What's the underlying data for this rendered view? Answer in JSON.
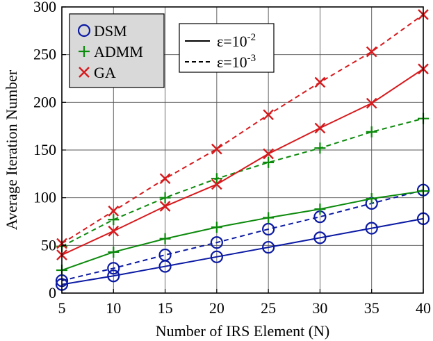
{
  "chart_data": {
    "type": "line",
    "title": "",
    "xlabel": "Number of IRS Element (N)",
    "ylabel": "Average Iteration Number",
    "x": [
      5,
      10,
      15,
      20,
      25,
      30,
      35,
      40
    ],
    "x_ticks": [
      "5",
      "10",
      "15",
      "20",
      "25",
      "30",
      "35",
      "40"
    ],
    "y_ticks": [
      "0",
      "50",
      "100",
      "150",
      "200",
      "250",
      "300"
    ],
    "xlim": [
      5,
      40
    ],
    "ylim": [
      0,
      300
    ],
    "grid": true,
    "series": [
      {
        "name": "DSM",
        "epsilon": "10^-2",
        "color": "#0b1aa3",
        "marker": "circle",
        "linestyle": "solid",
        "values": [
          9,
          18,
          28,
          38,
          48,
          58,
          68,
          78
        ]
      },
      {
        "name": "DSM",
        "epsilon": "10^-3",
        "color": "#0b1aa3",
        "marker": "circle",
        "linestyle": "dashed",
        "values": [
          13,
          26,
          40,
          53,
          67,
          80,
          94,
          108
        ]
      },
      {
        "name": "ADMM",
        "epsilon": "10^-2",
        "color": "#0c8a0c",
        "marker": "plus",
        "linestyle": "solid",
        "values": [
          24,
          43,
          57,
          69,
          79,
          88,
          99,
          107
        ]
      },
      {
        "name": "ADMM",
        "epsilon": "10^-3",
        "color": "#0c8a0c",
        "marker": "plus",
        "linestyle": "dashed",
        "values": [
          49,
          77,
          100,
          120,
          137,
          152,
          169,
          183
        ]
      },
      {
        "name": "GA",
        "epsilon": "10^-2",
        "color": "#d7191c",
        "marker": "x",
        "linestyle": "solid",
        "values": [
          40,
          65,
          91,
          114,
          146,
          173,
          199,
          235
        ]
      },
      {
        "name": "GA",
        "epsilon": "10^-3",
        "color": "#d7191c",
        "marker": "x",
        "linestyle": "dashed",
        "values": [
          52,
          86,
          120,
          151,
          187,
          221,
          253,
          292
        ]
      }
    ],
    "legend_methods": {
      "placement": "top-left",
      "entries": [
        {
          "label": "DSM",
          "marker": "circle",
          "color": "#0b1aa3"
        },
        {
          "label": "ADMM",
          "marker": "plus",
          "color": "#0c8a0c"
        },
        {
          "label": "GA",
          "marker": "x",
          "color": "#d7191c"
        }
      ]
    },
    "legend_tolerance": {
      "placement": "top",
      "entries": [
        {
          "linestyle": "solid",
          "base": "ε=10",
          "exponent": "-2"
        },
        {
          "linestyle": "dashed",
          "base": "ε=10",
          "exponent": "-3"
        }
      ]
    }
  }
}
